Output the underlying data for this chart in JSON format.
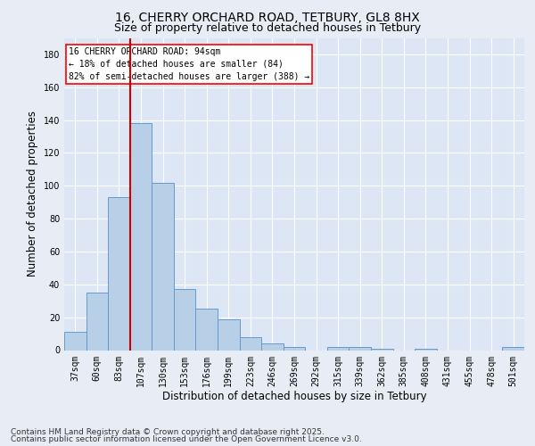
{
  "title1": "16, CHERRY ORCHARD ROAD, TETBURY, GL8 8HX",
  "title2": "Size of property relative to detached houses in Tetbury",
  "xlabel": "Distribution of detached houses by size in Tetbury",
  "ylabel": "Number of detached properties",
  "categories": [
    "37sqm",
    "60sqm",
    "83sqm",
    "107sqm",
    "130sqm",
    "153sqm",
    "176sqm",
    "199sqm",
    "223sqm",
    "246sqm",
    "269sqm",
    "292sqm",
    "315sqm",
    "339sqm",
    "362sqm",
    "385sqm",
    "408sqm",
    "431sqm",
    "455sqm",
    "478sqm",
    "501sqm"
  ],
  "values": [
    11,
    35,
    93,
    138,
    102,
    37,
    25,
    19,
    8,
    4,
    2,
    0,
    2,
    2,
    1,
    0,
    1,
    0,
    0,
    0,
    2
  ],
  "bar_color": "#b8cfe8",
  "bar_edge_color": "#6699cc",
  "vline_color": "#cc0000",
  "vline_x_index": 2.5,
  "ylim": [
    0,
    190
  ],
  "yticks": [
    0,
    20,
    40,
    60,
    80,
    100,
    120,
    140,
    160,
    180
  ],
  "annotation_title": "16 CHERRY ORCHARD ROAD: 94sqm",
  "annotation_line1": "← 18% of detached houses are smaller (84)",
  "annotation_line2": "82% of semi-detached houses are larger (388) →",
  "footer1": "Contains HM Land Registry data © Crown copyright and database right 2025.",
  "footer2": "Contains public sector information licensed under the Open Government Licence v3.0.",
  "background_color": "#e8edf5",
  "plot_bg_color": "#dce6f5",
  "grid_color": "#ffffff",
  "title_fontsize": 10,
  "subtitle_fontsize": 9,
  "axis_label_fontsize": 8.5,
  "tick_fontsize": 7,
  "footer_fontsize": 6.5,
  "ann_fontsize": 7
}
